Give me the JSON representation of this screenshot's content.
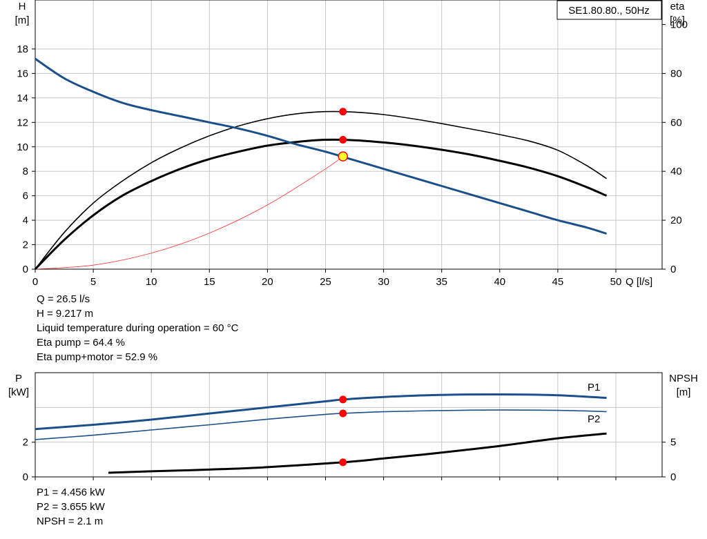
{
  "model_label": "SE1.80.80., 50Hz",
  "colors": {
    "h_curve": "#1a4f8a",
    "eta": "#000000",
    "system_curve": "#ff3333",
    "operating_point": "#ff0000",
    "duty_point_fill": "#ffff33",
    "grid": "#c8c8c8",
    "p_series_label": "#1a4f8a"
  },
  "chart_data": [
    {
      "type": "line",
      "yaxis_left_label": [
        "H",
        "[m]"
      ],
      "yaxis_right_label": [
        "eta",
        "[%]"
      ],
      "xlabel": "Q [l/s]",
      "xlim": [
        0,
        50
      ],
      "xticks": [
        0,
        5,
        10,
        15,
        20,
        25,
        30,
        35,
        40,
        45,
        50
      ],
      "ylim_left": [
        0,
        20
      ],
      "yticks_left": [
        0,
        2,
        4,
        6,
        8,
        10,
        12,
        14,
        16,
        18
      ],
      "ylim_right": [
        0,
        100
      ],
      "yticks_right": [
        0,
        20,
        40,
        60,
        80,
        100
      ],
      "grid": true,
      "series": [
        {
          "axis": "left",
          "x": [
            0,
            2.5,
            5,
            7.5,
            10,
            12.5,
            15,
            17.5,
            20,
            22.5,
            25,
            27.5,
            30,
            32.5,
            35,
            37.5,
            40,
            42.5,
            45,
            47.5,
            49.2
          ],
          "values": [
            17.2,
            15.6,
            14.5,
            13.6,
            13.0,
            12.5,
            12.0,
            11.5,
            10.9,
            10.2,
            9.6,
            8.9,
            8.2,
            7.5,
            6.8,
            6.1,
            5.4,
            4.7,
            4.0,
            3.4,
            2.9
          ]
        },
        {
          "axis": "right",
          "x": [
            0,
            2.5,
            5,
            7.5,
            10,
            12.5,
            15,
            17.5,
            20,
            22.5,
            25,
            27.5,
            30,
            32.5,
            35,
            37.5,
            40,
            42.5,
            45,
            47.5,
            49.2
          ],
          "values": [
            0,
            12,
            22,
            30,
            36,
            41,
            45,
            48,
            50.5,
            52,
            52.9,
            52.7,
            51.8,
            50.5,
            48.8,
            46.8,
            44.3,
            41.5,
            38,
            33.5,
            30
          ]
        },
        {
          "axis": "right",
          "x": [
            0,
            2.5,
            5,
            7.5,
            10,
            12.5,
            15,
            17.5,
            20,
            22.5,
            25,
            27.5,
            30,
            32.5,
            35,
            37.5,
            40,
            42.5,
            45,
            47.5,
            49.2
          ],
          "values": [
            0,
            15,
            27,
            36,
            43.5,
            49.5,
            54.5,
            58.5,
            61.5,
            63.5,
            64.4,
            64.2,
            63.2,
            61.5,
            59.5,
            57.3,
            55,
            52.4,
            48.6,
            42.3,
            37
          ]
        },
        {
          "axis": "left",
          "x": [
            0,
            5,
            10,
            15,
            20,
            25,
            26.5
          ],
          "values": [
            0,
            0.33,
            1.31,
            2.95,
            5.25,
            8.2,
            9.217
          ]
        }
      ],
      "operating_points": [
        {
          "x": 26.5,
          "y": 9.217,
          "axis": "left"
        },
        {
          "x": 26.5,
          "y": 64.4,
          "axis": "right"
        },
        {
          "x": 26.5,
          "y": 52.9,
          "axis": "right"
        }
      ]
    },
    {
      "type": "line",
      "yaxis_left_label": [
        "P",
        "[kW]"
      ],
      "yaxis_right_label": [
        "NPSH",
        "[m]"
      ],
      "xlim": [
        0,
        50
      ],
      "ylim_left": [
        0,
        6
      ],
      "yticks_left": [
        0,
        2
      ],
      "ylim_right": [
        0,
        15
      ],
      "yticks_right": [
        0,
        5
      ],
      "grid": true,
      "series": [
        {
          "name": "P1",
          "axis": "left",
          "x": [
            0,
            5,
            10,
            15,
            20,
            25,
            26.5,
            30,
            35,
            40,
            45,
            49.2
          ],
          "values": [
            2.75,
            3.0,
            3.3,
            3.65,
            4.0,
            4.35,
            4.456,
            4.6,
            4.72,
            4.75,
            4.7,
            4.55
          ]
        },
        {
          "name": "P2",
          "axis": "left",
          "x": [
            0,
            5,
            10,
            15,
            20,
            25,
            26.5,
            30,
            35,
            40,
            45,
            49.2
          ],
          "values": [
            2.15,
            2.4,
            2.7,
            3.0,
            3.32,
            3.6,
            3.655,
            3.75,
            3.82,
            3.85,
            3.83,
            3.76
          ]
        },
        {
          "axis": "right",
          "x": [
            6.3,
            10,
            15,
            20,
            26.5,
            30,
            35,
            40,
            45,
            49.2
          ],
          "values": [
            0.6,
            0.8,
            1.05,
            1.4,
            2.1,
            2.65,
            3.5,
            4.45,
            5.55,
            6.25
          ]
        }
      ],
      "operating_points": [
        {
          "x": 26.5,
          "y": 4.456,
          "axis": "left"
        },
        {
          "x": 26.5,
          "y": 3.655,
          "axis": "left"
        },
        {
          "x": 26.5,
          "y": 2.1,
          "axis": "right"
        }
      ]
    }
  ],
  "readout_top": [
    "Q = 26.5 l/s",
    "H = 9.217 m",
    "Liquid temperature during operation = 60 °C",
    "Eta pump = 64.4 %",
    "Eta pump+motor = 52.9 %"
  ],
  "readout_bottom": [
    "P1 = 4.456 kW",
    "P2 = 3.655 kW",
    "NPSH = 2.1 m"
  ]
}
